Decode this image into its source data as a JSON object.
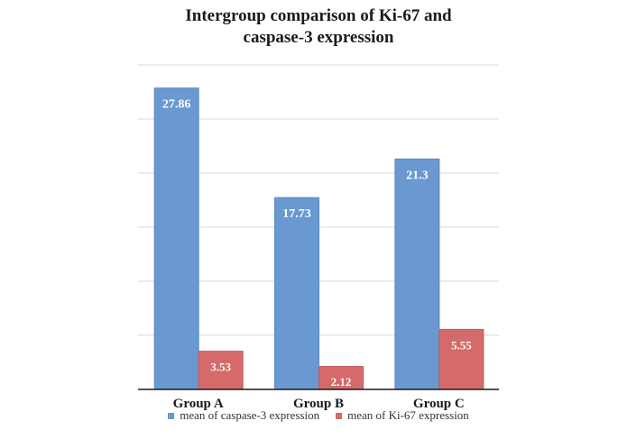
{
  "chart_data": {
    "type": "bar",
    "title": "Intergroup comparison of Ki-67 and caspase-3 expression",
    "title_lines": [
      "Intergroup comparison of Ki-67 and",
      "caspase-3 expression"
    ],
    "categories": [
      "Group A",
      "Group B",
      "Group C"
    ],
    "series": [
      {
        "name": "mean of caspase-3 expression",
        "values": [
          27.86,
          17.73,
          21.3
        ],
        "labels": [
          "27.86",
          "17.73",
          "21.3"
        ],
        "color": "#6a98d0"
      },
      {
        "name": "mean of Ki-67 expression",
        "values": [
          3.53,
          2.12,
          5.55
        ],
        "labels": [
          "3.53",
          "2.12",
          "5.55"
        ],
        "color": "#d46a6a"
      }
    ],
    "ylim": [
      0,
      30
    ],
    "ytick_step": 5,
    "grid": true,
    "y_tick_labels_shown": false,
    "legend_position": "bottom",
    "xlabel": "",
    "ylabel": ""
  }
}
